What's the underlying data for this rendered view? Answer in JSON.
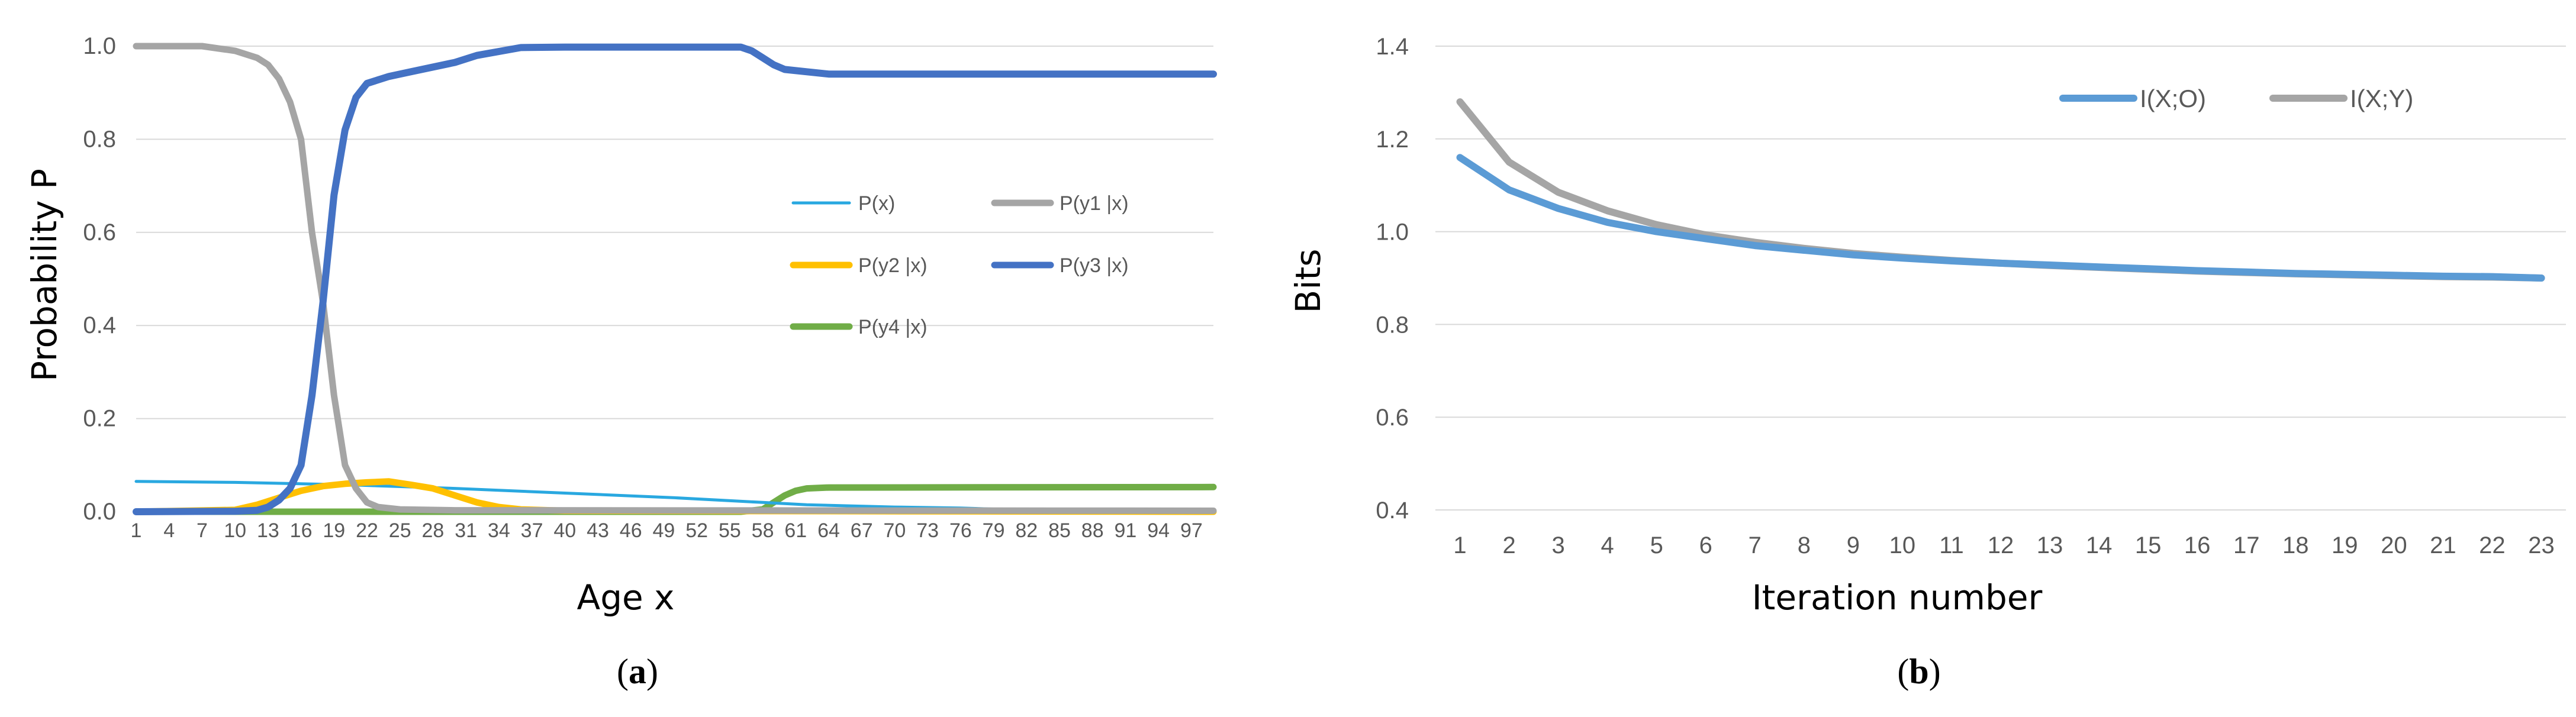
{
  "chart_data": [
    {
      "type": "line",
      "panel_label": "a",
      "xlabel": "Age x",
      "ylabel": "Probability P",
      "ylim": [
        0,
        1.0
      ],
      "yticks": [
        "0.0",
        "0.2",
        "0.4",
        "0.6",
        "0.8",
        "1.0"
      ],
      "xticks": [
        "1",
        "4",
        "7",
        "10",
        "13",
        "16",
        "19",
        "22",
        "25",
        "28",
        "31",
        "34",
        "37",
        "40",
        "43",
        "46",
        "49",
        "52",
        "55",
        "58",
        "61",
        "64",
        "67",
        "70",
        "73",
        "76",
        "79",
        "82",
        "85",
        "88",
        "91",
        "94",
        "97"
      ],
      "x_range": [
        1,
        99
      ],
      "grid": "horizontal",
      "legend_position": "right-middle",
      "series": [
        {
          "name": "P(x)",
          "color": "#29A8E0",
          "points": [
            [
              1,
              0.065
            ],
            [
              10,
              0.063
            ],
            [
              20,
              0.058
            ],
            [
              30,
              0.05
            ],
            [
              40,
              0.04
            ],
            [
              50,
              0.03
            ],
            [
              58,
              0.02
            ],
            [
              62,
              0.015
            ],
            [
              70,
              0.01
            ],
            [
              76,
              0.008
            ],
            [
              80,
              0.005
            ],
            [
              85,
              0.004
            ],
            [
              88,
              0.002
            ],
            [
              92,
              0.001
            ],
            [
              99,
              0.001
            ]
          ]
        },
        {
          "name": "P(y1 |x)",
          "color": "#A5A5A5",
          "points": [
            [
              1,
              1.0
            ],
            [
              7,
              1.0
            ],
            [
              10,
              0.99
            ],
            [
              12,
              0.975
            ],
            [
              13,
              0.96
            ],
            [
              14,
              0.93
            ],
            [
              15,
              0.88
            ],
            [
              16,
              0.8
            ],
            [
              17,
              0.6
            ],
            [
              18,
              0.45
            ],
            [
              19,
              0.25
            ],
            [
              20,
              0.1
            ],
            [
              21,
              0.05
            ],
            [
              22,
              0.02
            ],
            [
              23,
              0.01
            ],
            [
              25,
              0.005
            ],
            [
              30,
              0.003
            ],
            [
              99,
              0.002
            ]
          ]
        },
        {
          "name": "P(y2 |x)",
          "color": "#FFC000",
          "points": [
            [
              1,
              0.0
            ],
            [
              10,
              0.004
            ],
            [
              12,
              0.015
            ],
            [
              14,
              0.03
            ],
            [
              16,
              0.045
            ],
            [
              18,
              0.055
            ],
            [
              20,
              0.06
            ],
            [
              22,
              0.063
            ],
            [
              24,
              0.065
            ],
            [
              26,
              0.058
            ],
            [
              28,
              0.05
            ],
            [
              30,
              0.035
            ],
            [
              32,
              0.02
            ],
            [
              34,
              0.01
            ],
            [
              36,
              0.005
            ],
            [
              40,
              0.002
            ],
            [
              99,
              0.0
            ]
          ]
        },
        {
          "name": "P(y3 |x)",
          "color": "#4472C4",
          "points": [
            [
              1,
              0.0
            ],
            [
              10,
              0.001
            ],
            [
              12,
              0.003
            ],
            [
              13,
              0.01
            ],
            [
              14,
              0.025
            ],
            [
              15,
              0.05
            ],
            [
              16,
              0.1
            ],
            [
              17,
              0.25
            ],
            [
              18,
              0.45
            ],
            [
              19,
              0.68
            ],
            [
              20,
              0.82
            ],
            [
              21,
              0.89
            ],
            [
              22,
              0.92
            ],
            [
              24,
              0.935
            ],
            [
              26,
              0.945
            ],
            [
              30,
              0.965
            ],
            [
              32,
              0.98
            ],
            [
              36,
              0.997
            ],
            [
              40,
              0.998
            ],
            [
              56,
              0.998
            ],
            [
              57,
              0.99
            ],
            [
              58,
              0.975
            ],
            [
              59,
              0.96
            ],
            [
              60,
              0.95
            ],
            [
              62,
              0.945
            ],
            [
              64,
              0.94
            ],
            [
              99,
              0.94
            ]
          ]
        },
        {
          "name": "P(y4 |x)",
          "color": "#70AD47",
          "points": [
            [
              1,
              0.0
            ],
            [
              56,
              0.0
            ],
            [
              58,
              0.005
            ],
            [
              59,
              0.02
            ],
            [
              60,
              0.035
            ],
            [
              61,
              0.045
            ],
            [
              62,
              0.05
            ],
            [
              64,
              0.052
            ],
            [
              99,
              0.053
            ]
          ]
        }
      ]
    },
    {
      "type": "line",
      "panel_label": "b",
      "xlabel": "Iteration number",
      "ylabel": "Bits",
      "ylim": [
        0.4,
        1.4
      ],
      "yticks": [
        "0.4",
        "0.6",
        "0.8",
        "1.0",
        "1.2",
        "1.4"
      ],
      "categories": [
        "1",
        "2",
        "3",
        "4",
        "5",
        "6",
        "7",
        "8",
        "9",
        "10",
        "11",
        "12",
        "13",
        "14",
        "15",
        "16",
        "17",
        "18",
        "19",
        "20",
        "21",
        "22",
        "23"
      ],
      "grid": "horizontal",
      "legend_position": "top-right",
      "series": [
        {
          "name": "I(X;O)",
          "color": "#5B9BD5",
          "values": [
            1.16,
            1.09,
            1.05,
            1.02,
            1.0,
            0.985,
            0.97,
            0.96,
            0.95,
            0.943,
            0.937,
            0.932,
            0.928,
            0.924,
            0.92,
            0.916,
            0.913,
            0.91,
            0.908,
            0.906,
            0.904,
            0.903,
            0.9
          ]
        },
        {
          "name": "I(X;Y)",
          "color": "#A5A5A5",
          "values": [
            1.28,
            1.15,
            1.085,
            1.045,
            1.015,
            0.993,
            0.977,
            0.964,
            0.953,
            0.945,
            0.938,
            0.932,
            0.927,
            0.923,
            0.919,
            0.915,
            0.912,
            0.909,
            0.907,
            0.905,
            0.903,
            0.902,
            0.9
          ]
        }
      ]
    }
  ]
}
